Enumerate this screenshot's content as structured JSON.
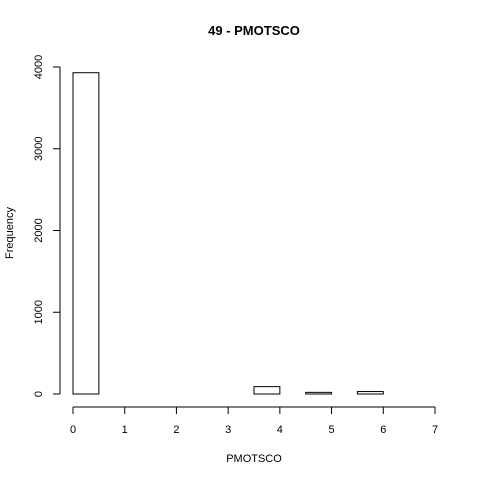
{
  "chart_data": {
    "type": "bar",
    "title": "49 - PMOTSCO",
    "xlabel": "PMOTSCO",
    "ylabel": "Frequency",
    "bins": [
      {
        "start": 0.0,
        "end": 0.5,
        "value": 3930
      },
      {
        "start": 0.5,
        "end": 1.0,
        "value": 0
      },
      {
        "start": 1.0,
        "end": 1.5,
        "value": 0
      },
      {
        "start": 1.5,
        "end": 2.0,
        "value": 0
      },
      {
        "start": 2.0,
        "end": 2.5,
        "value": 0
      },
      {
        "start": 2.5,
        "end": 3.0,
        "value": 0
      },
      {
        "start": 3.0,
        "end": 3.5,
        "value": 0
      },
      {
        "start": 3.5,
        "end": 4.0,
        "value": 90
      },
      {
        "start": 4.0,
        "end": 4.5,
        "value": 0
      },
      {
        "start": 4.5,
        "end": 5.0,
        "value": 20
      },
      {
        "start": 5.0,
        "end": 5.5,
        "value": 0
      },
      {
        "start": 5.5,
        "end": 6.0,
        "value": 30
      },
      {
        "start": 6.0,
        "end": 6.5,
        "value": 0
      },
      {
        "start": 6.5,
        "end": 7.0,
        "value": 0
      }
    ],
    "xlim": [
      0,
      7
    ],
    "ylim": [
      0,
      4000
    ],
    "xticks": [
      0,
      1,
      2,
      3,
      4,
      5,
      6,
      7
    ],
    "yticks": [
      0,
      1000,
      2000,
      3000,
      4000
    ],
    "xtick_labels": [
      "0",
      "1",
      "2",
      "3",
      "4",
      "5",
      "6",
      "7"
    ],
    "ytick_labels": [
      "0",
      "1000",
      "2000",
      "3000",
      "4000"
    ],
    "grid": false,
    "legend": "none"
  }
}
